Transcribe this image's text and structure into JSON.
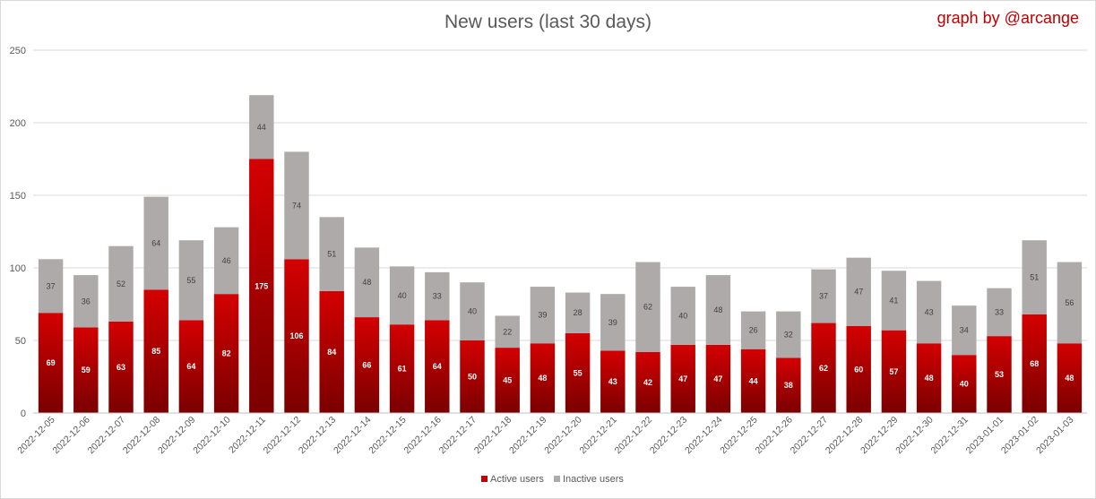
{
  "chart_data": {
    "type": "bar",
    "stacked": true,
    "title": "New users (last 30 days)",
    "credit": "graph by @arcange",
    "ylim": [
      0,
      250
    ],
    "yticks": [
      0,
      50,
      100,
      150,
      200,
      250
    ],
    "grid": true,
    "legend_position": "bottom",
    "categories": [
      "2022-12-05",
      "2022-12-06",
      "2022-12-07",
      "2022-12-08",
      "2022-12-09",
      "2022-12-10",
      "2022-12-11",
      "2022-12-12",
      "2022-12-13",
      "2022-12-14",
      "2022-12-15",
      "2022-12-16",
      "2022-12-17",
      "2022-12-18",
      "2022-12-19",
      "2022-12-20",
      "2022-12-21",
      "2022-12-22",
      "2022-12-23",
      "2022-12-24",
      "2022-12-25",
      "2022-12-26",
      "2022-12-27",
      "2022-12-28",
      "2022-12-29",
      "2022-12-30",
      "2022-12-31",
      "2023-01-01",
      "2023-01-02",
      "2023-01-03"
    ],
    "series": [
      {
        "name": "Active users",
        "color": "#c00000",
        "values": [
          69,
          59,
          63,
          85,
          64,
          82,
          175,
          106,
          84,
          66,
          61,
          64,
          50,
          45,
          48,
          55,
          43,
          42,
          47,
          47,
          44,
          38,
          62,
          60,
          57,
          48,
          40,
          53,
          68,
          48
        ]
      },
      {
        "name": "Inactive users",
        "color": "#aeaaaa",
        "values": [
          37,
          36,
          52,
          64,
          55,
          46,
          44,
          74,
          51,
          48,
          40,
          33,
          40,
          22,
          39,
          28,
          39,
          62,
          40,
          48,
          26,
          32,
          37,
          47,
          41,
          43,
          34,
          33,
          51,
          56
        ]
      }
    ]
  }
}
